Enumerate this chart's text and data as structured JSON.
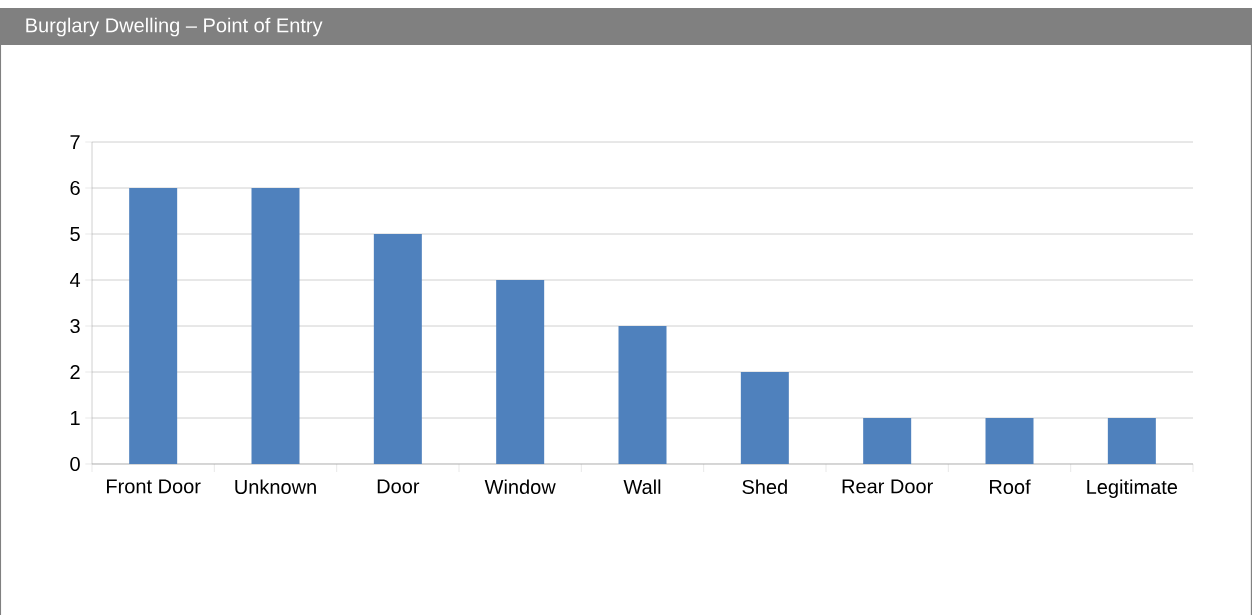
{
  "chart_data": {
    "type": "bar",
    "title": "Burglary Dwelling – Point of Entry",
    "categories": [
      "Front Door",
      "Unknown",
      "Door",
      "Window",
      "Wall",
      "Shed",
      "Rear Door",
      "Roof",
      "Legitimate"
    ],
    "values": [
      6,
      6,
      5,
      4,
      3,
      2,
      1,
      1,
      1
    ],
    "color": "#4f81bd",
    "ylim": [
      0,
      7
    ],
    "yticks": [
      0,
      1,
      2,
      3,
      4,
      5,
      6,
      7
    ],
    "grid": "y"
  }
}
